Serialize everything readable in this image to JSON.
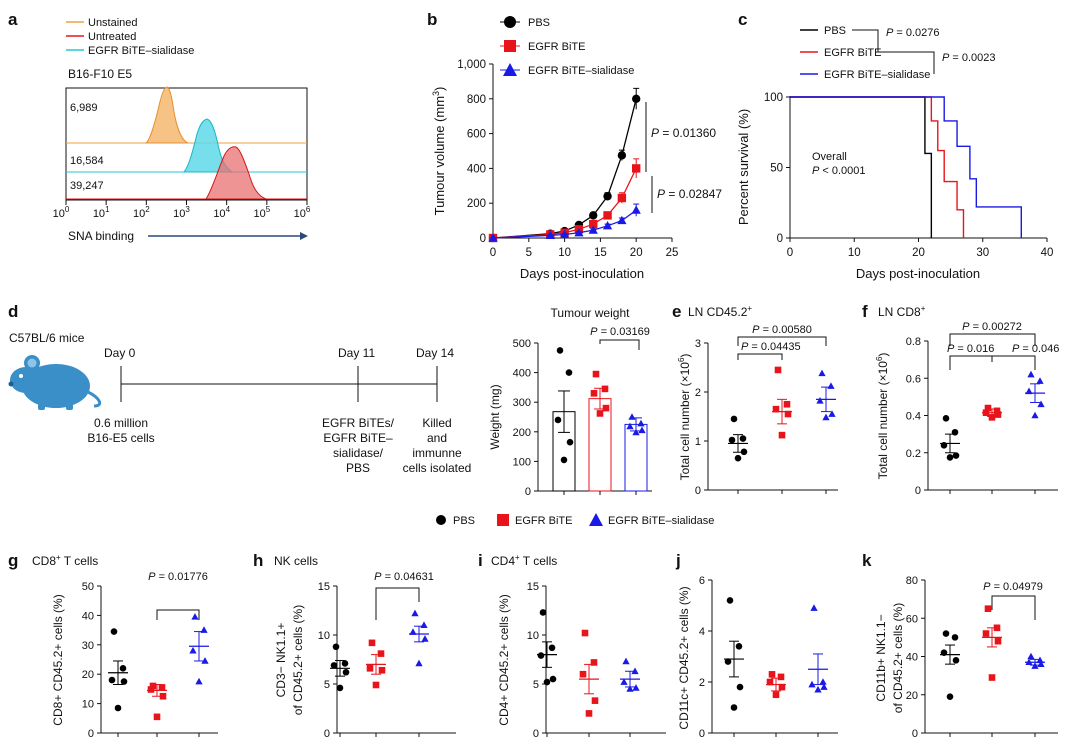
{
  "colors": {
    "pbs": "#000000",
    "bite": "#e8141c",
    "sialidase": "#1a1ae6",
    "unstained": "#f0a040",
    "untreated": "#e8141c",
    "sial_hist": "#20c8d8",
    "mouse": "#3a8fc8"
  },
  "legend_main": {
    "pbs": "PBS",
    "bite": "EGFR BiTE",
    "sialidase": "EGFR BiTE–sialidase"
  },
  "panel_labels": {
    "a": "a",
    "b": "b",
    "c": "c",
    "d": "d",
    "e": "e",
    "f": "f",
    "g": "g",
    "h": "h",
    "i": "i",
    "j": "j",
    "k": "k"
  },
  "panel_a": {
    "legend": [
      "Unstained",
      "Untreated",
      "EGFR BiTE–sialidase"
    ],
    "title": "B16-F10 E5",
    "counts": [
      "6,989",
      "16,584",
      "39,247"
    ],
    "xlabel": "SNA binding",
    "tick_base": "10",
    "tick_exps": [
      "0",
      "1",
      "2",
      "3",
      "4",
      "5",
      "6"
    ]
  },
  "panel_b": {
    "ylabel": "Tumour volume (mm",
    "ylabel_sup": "3",
    "ylabel_end": ")",
    "xlabel": "Days post-inoculation",
    "yticks": [
      "0",
      "200",
      "400",
      "600",
      "800",
      "1,000"
    ],
    "xticks": [
      "0",
      "5",
      "10",
      "15",
      "20",
      "25"
    ],
    "p1": "P = 0.01360",
    "p2": "P = 0.02847"
  },
  "panel_c": {
    "ylabel": "Percent survival (%)",
    "xlabel": "Days post-inoculation",
    "yticks": [
      "0",
      "50",
      "100"
    ],
    "xticks": [
      "0",
      "10",
      "20",
      "30",
      "40"
    ],
    "p1": "P = 0.0276",
    "p2": "P = 0.0023",
    "overall": "Overall",
    "overall_p": "P < 0.0001"
  },
  "panel_d": {
    "mice": "C57BL/6 mice",
    "day0": "Day 0",
    "day11": "Day 11",
    "day14": "Day 14",
    "cells": [
      "0.6 million",
      "B16-E5 cells"
    ],
    "treat": [
      "EGFR BiTEs/",
      "EGFR BiTE–",
      "sialidase/",
      "PBS"
    ],
    "killed": [
      "Killed",
      "and",
      "immunne",
      "cells isolated"
    ]
  },
  "panel_tw": {
    "title": "Tumour weight",
    "ylabel": "Weight (mg)",
    "yticks": [
      "0",
      "100",
      "200",
      "300",
      "400",
      "500"
    ],
    "p": "P = 0.03169"
  },
  "panel_e": {
    "title": "LN CD45.2",
    "title_sup": "+",
    "ylabel": "Total cell number (×10",
    "ylabel_sup": "6",
    "ylabel_end": ")",
    "yticks": [
      "0",
      "1",
      "2",
      "3"
    ],
    "p_top": "P = 0.00580",
    "p_mid": "P = 0.04435"
  },
  "panel_f": {
    "title": "LN CD8",
    "title_sup": "+",
    "ylabel": "Total cell number (×10",
    "ylabel_sup": "6",
    "ylabel_end": ")",
    "yticks": [
      "0",
      "0.2",
      "0.4",
      "0.6",
      "0.8"
    ],
    "p_top": "P = 0.00272",
    "p_left": "P = 0.016",
    "p_right": "P = 0.046"
  },
  "panel_g": {
    "title": "CD8",
    "title_sup": "+",
    "title_end": " T cells",
    "ylabel": "CD8+ CD45.2+ cells (%)",
    "yticks": [
      "0",
      "10",
      "20",
      "30",
      "40",
      "50"
    ],
    "p": "P = 0.01776"
  },
  "panel_h": {
    "title": "NK cells",
    "ylabel1": "CD3− NK1.1+",
    "ylabel2": "of CD45.2+ cells (%)",
    "yticks": [
      "0",
      "5",
      "10",
      "15"
    ],
    "p": "P = 0.04631"
  },
  "panel_i": {
    "title": "CD4",
    "title_sup": "+",
    "title_end": " T cells",
    "ylabel": "CD4+ CD45.2+ cells (%)",
    "yticks": [
      "0",
      "5",
      "10",
      "15"
    ]
  },
  "panel_j": {
    "ylabel": "CD11c+ CD45.2+ cells (%)",
    "yticks": [
      "0",
      "2",
      "4",
      "6"
    ]
  },
  "panel_k": {
    "ylabel1": "CD11b+ NK1.1−",
    "ylabel2": "of CD45.2+ cells (%)",
    "yticks": [
      "0",
      "20",
      "40",
      "60",
      "80"
    ],
    "p": "P = 0.04979"
  },
  "chart_data": [
    {
      "id": "b",
      "type": "line",
      "title": "",
      "xlabel": "Days post-inoculation",
      "ylabel": "Tumour volume (mm3)",
      "xlim": [
        0,
        25
      ],
      "ylim": [
        0,
        1000
      ],
      "series": [
        {
          "name": "PBS",
          "x": [
            0,
            8,
            10,
            12,
            14,
            16,
            18,
            20
          ],
          "y": [
            0,
            25,
            40,
            75,
            130,
            240,
            475,
            800
          ],
          "err": [
            0,
            5,
            8,
            10,
            15,
            20,
            30,
            60
          ]
        },
        {
          "name": "EGFR BiTE",
          "x": [
            0,
            8,
            10,
            12,
            14,
            16,
            18,
            20
          ],
          "y": [
            0,
            20,
            30,
            50,
            80,
            130,
            230,
            400
          ],
          "err": [
            0,
            5,
            6,
            8,
            10,
            15,
            30,
            55
          ]
        },
        {
          "name": "EGFR BiTE–sialidase",
          "x": [
            0,
            8,
            10,
            12,
            14,
            16,
            18,
            20
          ],
          "y": [
            0,
            15,
            20,
            30,
            45,
            70,
            100,
            160
          ],
          "err": [
            0,
            4,
            5,
            6,
            8,
            10,
            15,
            35
          ]
        }
      ]
    },
    {
      "id": "c",
      "type": "line",
      "title": "",
      "xlabel": "Days post-inoculation",
      "ylabel": "Percent survival (%)",
      "xlim": [
        0,
        40
      ],
      "ylim": [
        0,
        100
      ],
      "series": [
        {
          "name": "PBS",
          "x": [
            0,
            21,
            21,
            22,
            22
          ],
          "y": [
            100,
            100,
            60,
            60,
            0
          ]
        },
        {
          "name": "EGFR BiTE",
          "x": [
            0,
            22,
            22,
            23,
            23,
            24,
            24,
            26,
            26,
            27,
            27
          ],
          "y": [
            100,
            100,
            83,
            83,
            62,
            62,
            40,
            40,
            20,
            20,
            0
          ]
        },
        {
          "name": "EGFR BiTE–sialidase",
          "x": [
            0,
            24,
            24,
            26,
            26,
            28,
            28,
            29,
            29,
            36,
            36
          ],
          "y": [
            100,
            100,
            83,
            83,
            65,
            65,
            42,
            42,
            22,
            22,
            0
          ]
        }
      ]
    },
    {
      "id": "tw",
      "type": "bar",
      "title": "Tumour weight",
      "ylabel": "Weight (mg)",
      "ylim": [
        0,
        500
      ],
      "categories": [
        "PBS",
        "EGFR BiTE",
        "EGFR BiTE–sialidase"
      ],
      "values": [
        268,
        312,
        225
      ],
      "err": [
        70,
        35,
        22
      ],
      "points": [
        [
          475,
          400,
          240,
          165,
          105
        ],
        [
          395,
          345,
          330,
          280,
          262
        ],
        [
          250,
          228,
          218,
          205,
          198
        ]
      ]
    },
    {
      "id": "e",
      "type": "scatter",
      "title": "LN CD45.2+",
      "ylabel": "Total cell number (×106)",
      "ylim": [
        0,
        3
      ],
      "categories": [
        "PBS",
        "EGFR BiTE",
        "EGFR BiTE–sialidase"
      ],
      "mean": [
        0.95,
        1.6,
        1.85
      ],
      "err": [
        0.18,
        0.25,
        0.25
      ],
      "points": [
        [
          1.45,
          1.05,
          1.02,
          0.78,
          0.65
        ],
        [
          2.45,
          1.75,
          1.65,
          1.55,
          1.12
        ],
        [
          2.38,
          2.12,
          1.82,
          1.55,
          1.48
        ]
      ]
    },
    {
      "id": "f",
      "type": "scatter",
      "title": "LN CD8+",
      "ylabel": "Total cell number (×106)",
      "ylim": [
        0,
        0.8
      ],
      "categories": [
        "PBS",
        "EGFR BiTE",
        "EGFR BiTE–sialidase"
      ],
      "mean": [
        0.25,
        0.415,
        0.52
      ],
      "err": [
        0.05,
        0.02,
        0.05
      ],
      "points": [
        [
          0.385,
          0.31,
          0.24,
          0.185,
          0.175
        ],
        [
          0.44,
          0.425,
          0.415,
          0.405,
          0.39
        ],
        [
          0.62,
          0.585,
          0.53,
          0.46,
          0.4
        ]
      ]
    },
    {
      "id": "g",
      "type": "scatter",
      "title": "CD8+ T cells",
      "ylabel": "CD8+ CD45.2+ cells (%)",
      "ylim": [
        0,
        50
      ],
      "categories": [
        "PBS",
        "EGFR BiTE",
        "EGFR BiTE–sialidase"
      ],
      "mean": [
        20.5,
        14.5,
        29.5
      ],
      "err": [
        4,
        2,
        5
      ],
      "points": [
        [
          34.5,
          22,
          18,
          17.5,
          8.5
        ],
        [
          16,
          15.5,
          14.8,
          12.5,
          5.5
        ],
        [
          39.5,
          35,
          28,
          24.5,
          17.5
        ]
      ]
    },
    {
      "id": "h",
      "type": "scatter",
      "title": "NK cells",
      "ylabel": "CD3− NK1.1+ of CD45.2+ cells (%)",
      "ylim": [
        0,
        15
      ],
      "categories": [
        "PBS",
        "EGFR BiTE",
        "EGFR BiTE–sialidase"
      ],
      "mean": [
        6.6,
        7.0,
        10.1
      ],
      "err": [
        0.8,
        1.0,
        0.8
      ],
      "points": [
        [
          8.8,
          7.1,
          6.9,
          6.2,
          4.6
        ],
        [
          9.2,
          8.1,
          6.6,
          6.4,
          4.9
        ],
        [
          12.2,
          11.0,
          10.3,
          9.6,
          7.1
        ]
      ]
    },
    {
      "id": "i",
      "type": "scatter",
      "title": "CD4+ T cells",
      "ylabel": "CD4+ CD45.2+ cells (%)",
      "ylim": [
        0,
        15
      ],
      "categories": [
        "PBS",
        "EGFR BiTE",
        "EGFR BiTE–sialidase"
      ],
      "mean": [
        8.0,
        5.5,
        5.5
      ],
      "err": [
        1.3,
        1.5,
        0.8
      ],
      "points": [
        [
          12.3,
          8.7,
          7.9,
          5.5,
          5.2
        ],
        [
          10.2,
          7.2,
          6.0,
          3.3,
          2.0
        ],
        [
          7.3,
          6.3,
          5.2,
          4.6,
          4.5
        ]
      ]
    },
    {
      "id": "j",
      "type": "scatter",
      "title": "",
      "ylabel": "CD11c+ CD45.2+ cells (%)",
      "ylim": [
        0,
        6
      ],
      "categories": [
        "PBS",
        "EGFR BiTE",
        "EGFR BiTE–sialidase"
      ],
      "mean": [
        2.9,
        1.9,
        2.5
      ],
      "err": [
        0.7,
        0.25,
        0.6
      ],
      "points": [
        [
          5.2,
          3.4,
          2.8,
          1.8,
          1.0
        ],
        [
          2.3,
          2.2,
          2.0,
          1.8,
          1.5
        ],
        [
          4.9,
          2.0,
          1.9,
          1.8,
          1.7
        ]
      ]
    },
    {
      "id": "k",
      "type": "scatter",
      "title": "",
      "ylabel": "CD11b+ NK1.1− of CD45.2+ cells (%)",
      "ylim": [
        0,
        80
      ],
      "categories": [
        "PBS",
        "EGFR BiTE",
        "EGFR BiTE–sialidase"
      ],
      "mean": [
        41,
        50,
        37
      ],
      "err": [
        5,
        5,
        1.5
      ],
      "points": [
        [
          52,
          50,
          42,
          38,
          19
        ],
        [
          65,
          55,
          52,
          48,
          29
        ],
        [
          40,
          38,
          37,
          36,
          35
        ]
      ]
    }
  ]
}
